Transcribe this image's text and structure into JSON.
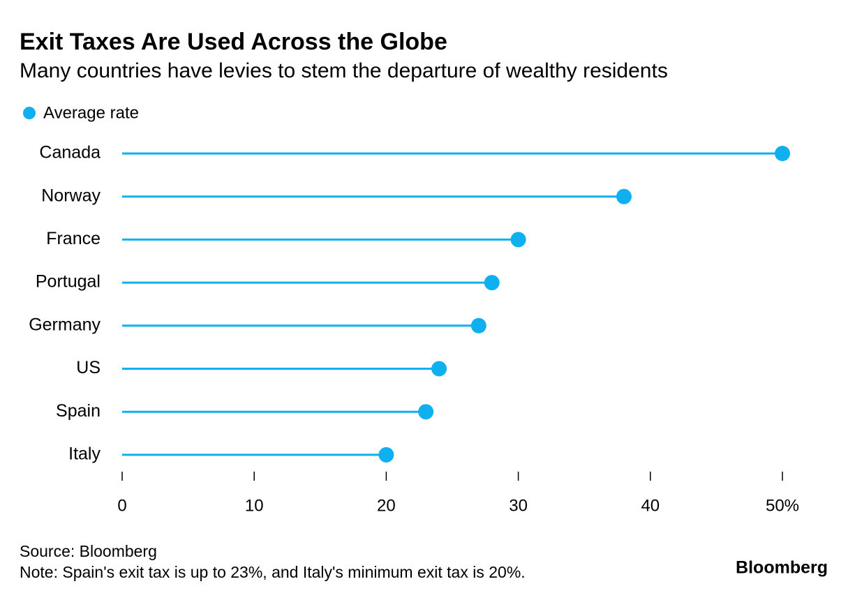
{
  "chart_data": {
    "type": "lollipop",
    "title": "Exit Taxes Are Used Across the Globe",
    "subtitle": "Many countries have levies to stem the departure of wealthy residents",
    "categories": [
      "Canada",
      "Norway",
      "France",
      "Portugal",
      "Germany",
      "US",
      "Spain",
      "Italy"
    ],
    "series": [
      {
        "name": "Average rate",
        "color": "#0fb0f0",
        "values": [
          50,
          38,
          30,
          28,
          27,
          24,
          23,
          20
        ]
      }
    ],
    "xlim": [
      0,
      50
    ],
    "xticks": [
      0,
      10,
      20,
      30,
      40,
      {
        "value": 50,
        "label": "50%"
      }
    ],
    "source": "Source: Bloomberg",
    "note": "Note: Spain's exit tax is up to 23%, and Italy's minimum exit tax is 20%.",
    "logo": "Bloomberg"
  }
}
